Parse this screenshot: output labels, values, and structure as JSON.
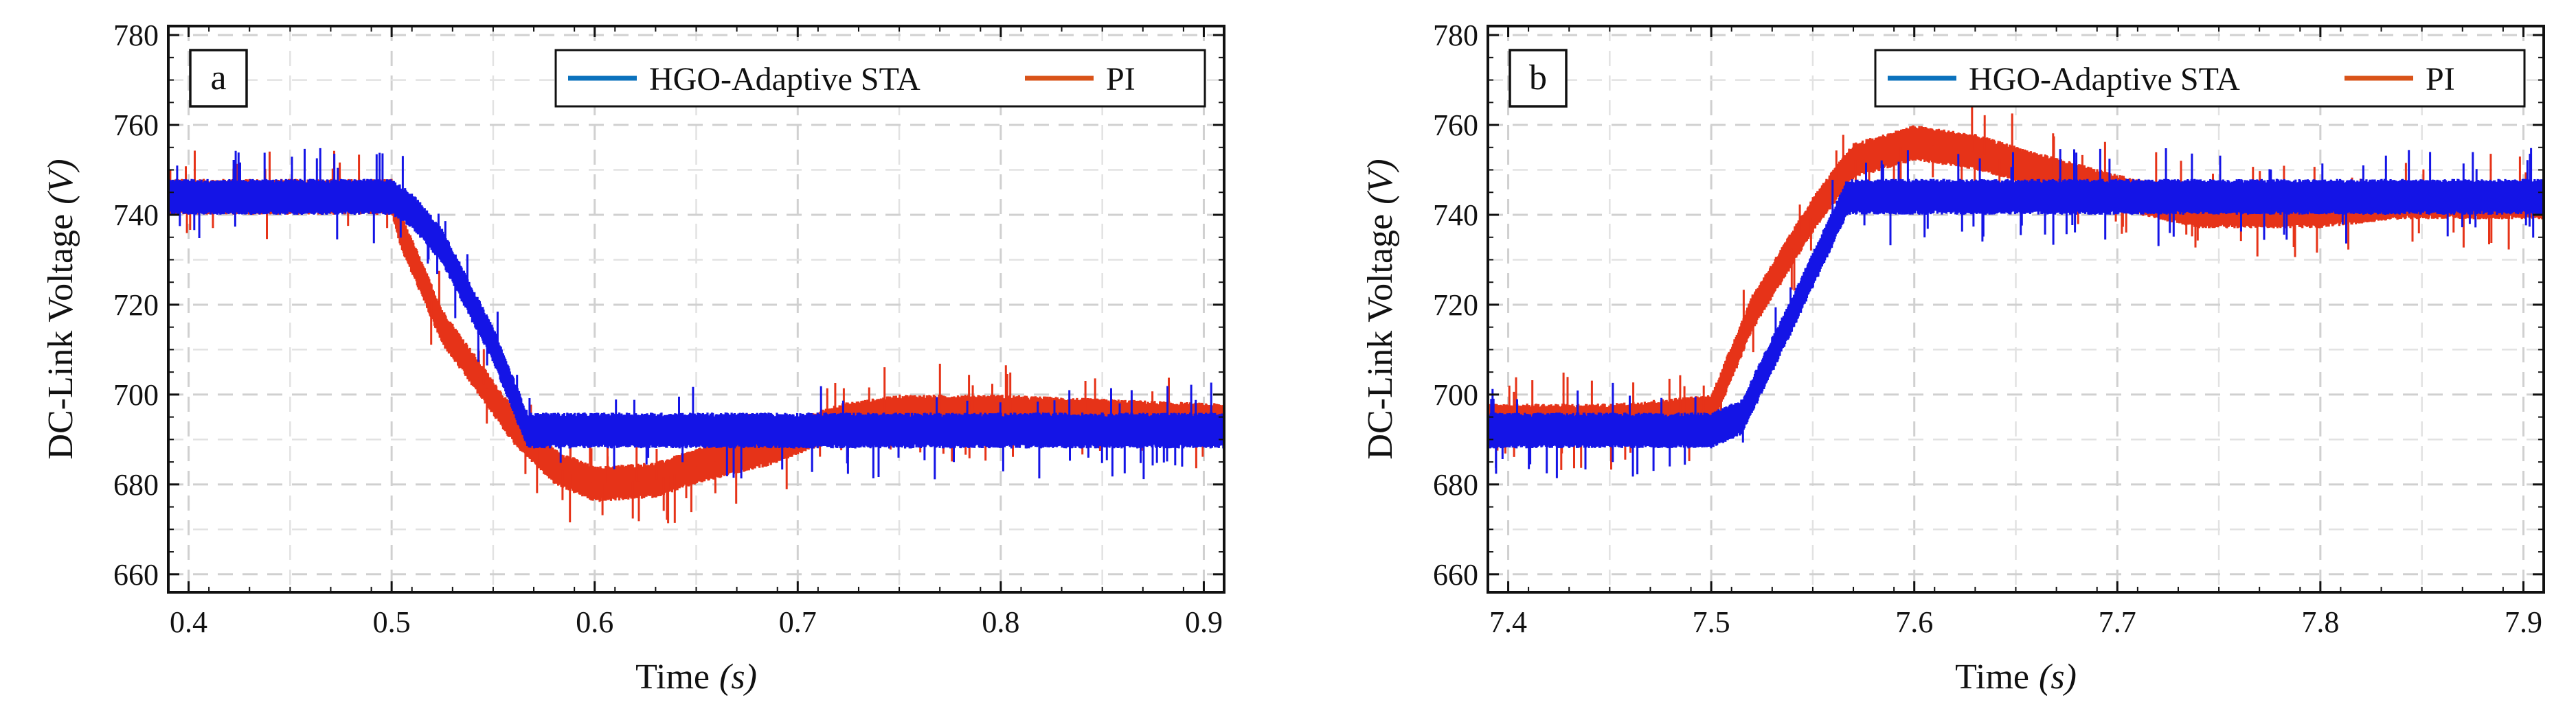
{
  "chart_data": [
    {
      "panel_label": "a",
      "type": "line",
      "xlabel": "Time",
      "xlabel_unit": "(s)",
      "ylabel": "DC-Link Voltage",
      "ylabel_unit": "(V)",
      "xlim": [
        0.39,
        0.91
      ],
      "ylim": [
        656,
        782
      ],
      "xticks": [
        "0.4",
        "0.5",
        "0.6",
        "0.7",
        "0.8",
        "0.9"
      ],
      "xtick_values": [
        0.4,
        0.5,
        0.6,
        0.7,
        0.8,
        0.9
      ],
      "yticks": [
        "660",
        "680",
        "700",
        "720",
        "740",
        "760",
        "780"
      ],
      "ytick_values": [
        660,
        680,
        700,
        720,
        740,
        760,
        780
      ],
      "grid": true,
      "legend_position": "top-right",
      "series": [
        {
          "name": "HGO-Adaptive STA",
          "color": "#1414e6",
          "legend_color": "#0b72bd",
          "ripple": 4,
          "points": [
            [
              0.39,
              744
            ],
            [
              0.5,
              744
            ],
            [
              0.51,
              741
            ],
            [
              0.525,
              733
            ],
            [
              0.55,
              711
            ],
            [
              0.567,
              692
            ],
            [
              0.6,
              692
            ],
            [
              0.7,
              692
            ],
            [
              0.8,
              692
            ],
            [
              0.91,
              692
            ]
          ]
        },
        {
          "name": "PI",
          "color": "#e63318",
          "legend_color": "#d95319",
          "ripple": 4,
          "points": [
            [
              0.39,
              744
            ],
            [
              0.5,
              744
            ],
            [
              0.505,
              736
            ],
            [
              0.525,
              715
            ],
            [
              0.56,
              693
            ],
            [
              0.58,
              684
            ],
            [
              0.6,
              680
            ],
            [
              0.63,
              681
            ],
            [
              0.65,
              684
            ],
            [
              0.685,
              688
            ],
            [
              0.72,
              694
            ],
            [
              0.75,
              696
            ],
            [
              0.8,
              696
            ],
            [
              0.91,
              694
            ]
          ]
        }
      ]
    },
    {
      "panel_label": "b",
      "type": "line",
      "xlabel": "Time",
      "xlabel_unit": "(s)",
      "ylabel": "DC-Link Voltage",
      "ylabel_unit": "(V)",
      "xlim": [
        7.39,
        7.91
      ],
      "ylim": [
        656,
        782
      ],
      "xticks": [
        "7.4",
        "7.5",
        "7.6",
        "7.7",
        "7.8",
        "7.9"
      ],
      "xtick_values": [
        7.4,
        7.5,
        7.6,
        7.7,
        7.8,
        7.9
      ],
      "yticks": [
        "660",
        "680",
        "700",
        "720",
        "740",
        "760",
        "780"
      ],
      "ytick_values": [
        660,
        680,
        700,
        720,
        740,
        760,
        780
      ],
      "grid": true,
      "legend_position": "top-right",
      "series": [
        {
          "name": "HGO-Adaptive STA",
          "color": "#1414e6",
          "legend_color": "#0b72bd",
          "ripple": 4,
          "points": [
            [
              7.39,
              692
            ],
            [
              7.5,
              692
            ],
            [
              7.515,
              695
            ],
            [
              7.54,
              718
            ],
            [
              7.567,
              744
            ],
            [
              7.6,
              744
            ],
            [
              7.7,
              744
            ],
            [
              7.8,
              744
            ],
            [
              7.91,
              744
            ]
          ]
        },
        {
          "name": "PI",
          "color": "#e63318",
          "legend_color": "#d95319",
          "ripple": 4,
          "points": [
            [
              7.39,
              694
            ],
            [
              7.45,
              694
            ],
            [
              7.5,
              696
            ],
            [
              7.52,
              718
            ],
            [
              7.55,
              740
            ],
            [
              7.57,
              752
            ],
            [
              7.6,
              756
            ],
            [
              7.63,
              754
            ],
            [
              7.66,
              750
            ],
            [
              7.7,
              745
            ],
            [
              7.74,
              741
            ],
            [
              7.8,
              741
            ],
            [
              7.84,
              743
            ],
            [
              7.91,
              743
            ]
          ]
        }
      ]
    }
  ]
}
